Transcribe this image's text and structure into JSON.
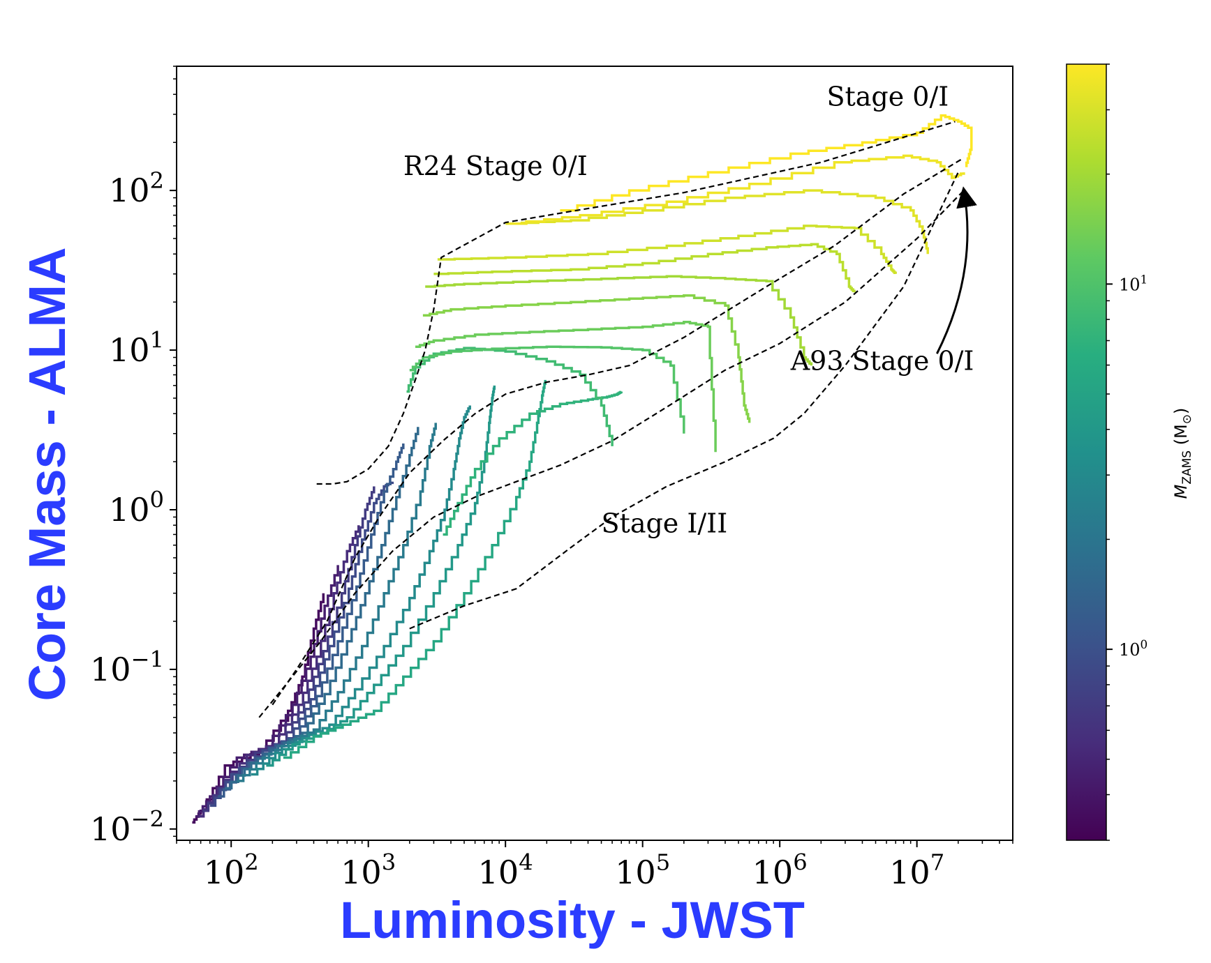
{
  "chart_data": {
    "type": "line",
    "xlabel": "Luminosity - JWST",
    "ylabel": "Core Mass - ALMA",
    "x_scale": "log",
    "y_scale": "log",
    "xlim": [
      40,
      50000000
    ],
    "ylim": [
      0.0085,
      600
    ],
    "xticks": [
      {
        "value": 100,
        "base": "10",
        "exp": "2"
      },
      {
        "value": 1000,
        "base": "10",
        "exp": "3"
      },
      {
        "value": 10000,
        "base": "10",
        "exp": "4"
      },
      {
        "value": 100000,
        "base": "10",
        "exp": "5"
      },
      {
        "value": 1000000,
        "base": "10",
        "exp": "6"
      },
      {
        "value": 10000000,
        "base": "10",
        "exp": "7"
      }
    ],
    "yticks": [
      {
        "value": 0.01,
        "base": "10",
        "exp": "−2"
      },
      {
        "value": 0.1,
        "base": "10",
        "exp": "−1"
      },
      {
        "value": 1,
        "base": "10",
        "exp": "0"
      },
      {
        "value": 10,
        "base": "10",
        "exp": "1"
      },
      {
        "value": 100,
        "base": "10",
        "exp": "2"
      }
    ],
    "grid": false,
    "colorbar": {
      "label_main": "M",
      "label_sub": "ZAMS",
      "label_unit_open": " (M",
      "label_unit_sub": "⊙",
      "label_unit_close": ")",
      "range": [
        0.3,
        40
      ],
      "scale": "log",
      "ticks": [
        {
          "value": 1,
          "base": "10",
          "exp": "0"
        },
        {
          "value": 10,
          "base": "10",
          "exp": "1"
        }
      ],
      "colormap": "viridis"
    },
    "tracks": [
      {
        "mzams": 0.35,
        "x": [
          52,
          60,
          90,
          160,
          260,
          330,
          400,
          470
        ],
        "y": [
          0.011,
          0.013,
          0.025,
          0.031,
          0.055,
          0.09,
          0.18,
          0.3
        ]
      },
      {
        "mzams": 0.45,
        "x": [
          55,
          70,
          110,
          180,
          280,
          380,
          480,
          600
        ],
        "y": [
          0.012,
          0.016,
          0.028,
          0.033,
          0.06,
          0.12,
          0.25,
          0.45
        ]
      },
      {
        "mzams": 0.55,
        "x": [
          58,
          80,
          130,
          200,
          310,
          420,
          560,
          700,
          850
        ],
        "y": [
          0.012,
          0.018,
          0.029,
          0.034,
          0.06,
          0.12,
          0.3,
          0.55,
          0.8
        ]
      },
      {
        "mzams": 0.7,
        "x": [
          62,
          90,
          150,
          230,
          340,
          470,
          640,
          800,
          950,
          1100
        ],
        "y": [
          0.013,
          0.02,
          0.03,
          0.035,
          0.062,
          0.13,
          0.3,
          0.6,
          1.0,
          1.4
        ]
      },
      {
        "mzams": 0.9,
        "x": [
          70,
          100,
          170,
          260,
          380,
          520,
          720,
          900,
          1100,
          1300,
          1500
        ],
        "y": [
          0.014,
          0.022,
          0.031,
          0.037,
          0.065,
          0.14,
          0.32,
          0.65,
          1.1,
          1.4,
          1.5
        ]
      },
      {
        "mzams": 1.2,
        "x": [
          80,
          120,
          190,
          290,
          420,
          600,
          820,
          1050,
          1300,
          1600,
          1800
        ],
        "y": [
          0.016,
          0.024,
          0.032,
          0.038,
          0.068,
          0.15,
          0.33,
          0.7,
          1.3,
          2.0,
          2.6
        ]
      },
      {
        "mzams": 1.6,
        "x": [
          90,
          140,
          220,
          330,
          480,
          700,
          950,
          1250,
          1600,
          2000,
          2300
        ],
        "y": [
          0.018,
          0.026,
          0.033,
          0.04,
          0.07,
          0.15,
          0.3,
          0.6,
          1.2,
          2.2,
          3.3
        ]
      },
      {
        "mzams": 2.2,
        "x": [
          110,
          170,
          260,
          400,
          600,
          900,
          1300,
          1800,
          2400,
          2800,
          3100
        ],
        "y": [
          0.02,
          0.028,
          0.035,
          0.042,
          0.072,
          0.14,
          0.3,
          0.6,
          1.3,
          2.5,
          3.5
        ]
      },
      {
        "mzams": 3.0,
        "x": [
          140,
          210,
          330,
          520,
          800,
          1300,
          2000,
          2800,
          3600,
          4200,
          4600,
          5000,
          5500
        ],
        "y": [
          0.022,
          0.03,
          0.037,
          0.045,
          0.075,
          0.14,
          0.28,
          0.55,
          1.0,
          1.8,
          2.8,
          3.8,
          4.5
        ]
      },
      {
        "mzams": 4.0,
        "x": [
          180,
          280,
          450,
          700,
          1100,
          1800,
          3000,
          4500,
          6000,
          7000,
          7600,
          8000,
          8300
        ],
        "y": [
          0.025,
          0.034,
          0.04,
          0.05,
          0.08,
          0.14,
          0.3,
          0.6,
          1.1,
          2.0,
          3.5,
          5.0,
          6.0
        ]
      },
      {
        "mzams": 5.5,
        "x": [
          240,
          400,
          650,
          1100,
          1800,
          3000,
          5000,
          8000,
          12000,
          15000,
          17000,
          18500,
          19500
        ],
        "y": [
          0.028,
          0.038,
          0.045,
          0.055,
          0.09,
          0.15,
          0.3,
          0.6,
          1.2,
          2.0,
          3.5,
          5.2,
          6.5
        ]
      },
      {
        "mzams": 7.0,
        "x": [
          3500,
          4500,
          6000,
          9000,
          15000,
          25000,
          40000,
          55000,
          65000,
          70000
        ],
        "y": [
          0.7,
          1.1,
          1.8,
          2.8,
          4.0,
          4.6,
          4.9,
          5.1,
          5.3,
          5.5
        ]
      },
      {
        "mzams": 8.5,
        "x": [
          1900,
          2200,
          3000,
          5000,
          10000,
          20000,
          35000,
          50000,
          60000
        ],
        "y": [
          5.5,
          7.8,
          9.5,
          10.3,
          9.8,
          8.5,
          7.0,
          4.5,
          2.5
        ]
      },
      {
        "mzams": 10.5,
        "x": [
          2000,
          2500,
          4000,
          8000,
          20000,
          50000,
          100000,
          160000,
          200000
        ],
        "y": [
          7.5,
          9.0,
          9.8,
          10.2,
          10.5,
          10.4,
          10.0,
          8.0,
          3.0
        ]
      },
      {
        "mzams": 13.0,
        "x": [
          2200,
          3000,
          6000,
          15000,
          40000,
          100000,
          200000,
          300000,
          340000
        ],
        "y": [
          10.5,
          11.5,
          12.5,
          13.0,
          13.5,
          14.0,
          15.0,
          14.0,
          2.3
        ]
      },
      {
        "mzams": 16.0,
        "x": [
          2500,
          4000,
          10000,
          30000,
          80000,
          200000,
          400000,
          500000,
          550000,
          600000
        ],
        "y": [
          16.5,
          18.0,
          19.0,
          20.0,
          21.0,
          22.0,
          19.0,
          9.0,
          4.5,
          3.5
        ]
      },
      {
        "mzams": 20.0,
        "x": [
          2600,
          5000,
          15000,
          50000,
          150000,
          400000,
          800000,
          1200000,
          1500000,
          1700000
        ],
        "y": [
          25.0,
          26.0,
          27.0,
          28.0,
          29.0,
          28.0,
          27.0,
          16.0,
          9.0,
          8.0
        ]
      },
      {
        "mzams": 24.0,
        "x": [
          3000,
          8000,
          30000,
          100000,
          300000,
          800000,
          1700000,
          2600000,
          3200000,
          3500000
        ],
        "y": [
          30.0,
          31.0,
          32.0,
          35.0,
          40.0,
          44.0,
          46.0,
          40.0,
          25.0,
          23.0
        ]
      },
      {
        "mzams": 28.0,
        "x": [
          3200,
          10000,
          40000,
          150000,
          500000,
          1500000,
          3500000,
          5500000,
          6500000,
          7000000
        ],
        "y": [
          37.0,
          38.0,
          40.0,
          45.0,
          52.0,
          60.0,
          58.0,
          40.0,
          32.0,
          30.0
        ]
      },
      {
        "mzams": 32.0,
        "x": [
          10000,
          30000,
          100000,
          400000,
          1500000,
          5000000,
          9000000,
          11000000,
          12000000
        ],
        "y": [
          62.0,
          65.0,
          75.0,
          90.0,
          100.0,
          90.0,
          75.0,
          55.0,
          40.0
        ]
      },
      {
        "mzams": 36.0,
        "x": [
          10500,
          35000,
          150000,
          600000,
          2500000,
          8000000,
          14000000,
          18000000,
          22000000
        ],
        "y": [
          62.0,
          70.0,
          85.0,
          110.0,
          150.0,
          165.0,
          150.0,
          120.0,
          130.0
        ]
      },
      {
        "mzams": 40.0,
        "x": [
          25000,
          80000,
          300000,
          1200000,
          4000000,
          10000000,
          15000000,
          20000000,
          25000000,
          25000000,
          23000000
        ],
        "y": [
          75.0,
          100.0,
          130.0,
          170.0,
          200.0,
          230.0,
          295.0,
          270.0,
          240.0,
          180.0,
          140.0
        ]
      }
    ],
    "isochrones": [
      {
        "x": [
          420,
          550,
          700,
          1000,
          1400,
          1800,
          2200,
          2600,
          3000,
          3400,
          10000,
          30000,
          200000,
          2000000,
          19000000
        ],
        "y": [
          1.45,
          1.45,
          1.5,
          1.8,
          2.5,
          4.0,
          6.5,
          10.0,
          18.0,
          38.0,
          63.0,
          74.0,
          97.0,
          150.0,
          270.0
        ]
      },
      {
        "x": [
          200,
          300,
          500,
          800,
          1200,
          2000,
          3500,
          6000,
          10000,
          20000,
          40000,
          80000,
          200000,
          800000,
          2500000,
          8000000,
          22000000
        ],
        "y": [
          0.06,
          0.1,
          0.2,
          0.5,
          0.9,
          1.7,
          2.7,
          4.0,
          5.3,
          6.3,
          7.0,
          8.0,
          12.0,
          25.0,
          45.0,
          95.0,
          160.0
        ]
      },
      {
        "x": [
          160,
          250,
          450,
          800,
          1500,
          3000,
          6000,
          12000,
          25000,
          60000,
          150000,
          400000,
          1000000,
          3000000,
          10000000,
          22000000
        ],
        "y": [
          0.05,
          0.08,
          0.15,
          0.3,
          0.55,
          0.9,
          1.2,
          1.5,
          1.9,
          2.7,
          4.4,
          7.5,
          11.0,
          20.0,
          50.0,
          100.0
        ]
      },
      {
        "x": [
          2000,
          5000,
          12000,
          30000,
          60000,
          150000,
          400000,
          900000,
          1500000,
          3000000,
          8000000,
          20000000
        ],
        "y": [
          0.18,
          0.25,
          0.32,
          0.58,
          0.9,
          1.4,
          2.0,
          2.8,
          4.0,
          8.0,
          25.0,
          130.0
        ]
      }
    ],
    "annotations": [
      {
        "text": "Stage 0/I",
        "x": 2200000,
        "y": 340
      },
      {
        "text": "R24 Stage 0/I",
        "x": 1800,
        "y": 125
      },
      {
        "text": "A93 Stage 0/I",
        "x": 1200000,
        "y": 7.5
      },
      {
        "text": "Stage I/II",
        "x": 50000,
        "y": 0.72
      }
    ],
    "arrow": {
      "from": [
        14000000,
        9.5
      ],
      "to": [
        22000000,
        100
      ]
    }
  }
}
